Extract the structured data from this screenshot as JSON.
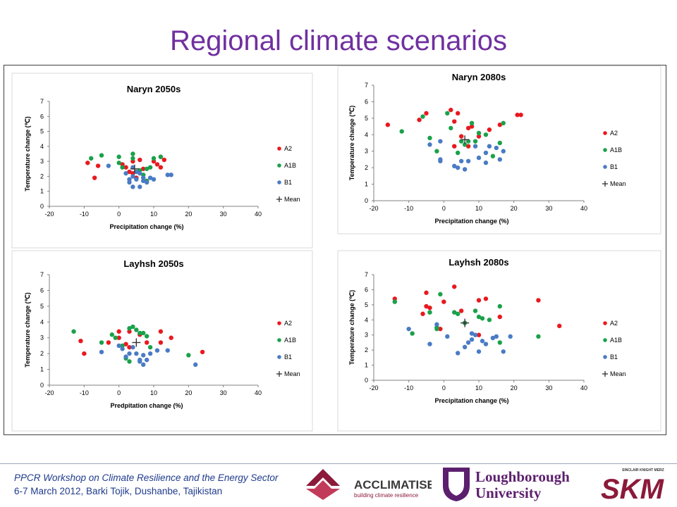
{
  "slide": {
    "title": "Regional climate scenarios",
    "footer_line1": "PPCR Workshop on Climate Resilience and the Energy Sector",
    "footer_line2": "6-7 March 2012, Barki Tojik, Dushanbe, Tajikistan"
  },
  "logos": {
    "acclimatise_name": "ACCLIMATISE",
    "acclimatise_tagline": "building climate resilience",
    "lboro_line1": "Loughborough",
    "lboro_line2": "University",
    "skm_small": "SINCLAIR KNIGHT MERZ",
    "skm_big": "SKM"
  },
  "colors": {
    "A2": "#e8191f",
    "A1B": "#1aa14a",
    "B1": "#4a7bc4",
    "Mean": "#333333",
    "title": "#7030a0"
  },
  "chart_data": [
    {
      "type": "scatter",
      "title": "Naryn 2050s",
      "xlabel": "Precipitation change (%)",
      "ylabel": "Temperature change (℃)",
      "xlim": [
        -20,
        40
      ],
      "ylim": [
        0,
        7
      ],
      "xticks": [
        -20,
        -10,
        0,
        10,
        20,
        30,
        40
      ],
      "yticks": [
        0,
        1,
        2,
        3,
        4,
        5,
        6,
        7
      ],
      "legend": "right",
      "grid": false,
      "series": [
        {
          "name": "A2",
          "points": [
            [
              -9,
              2.9
            ],
            [
              -7,
              1.9
            ],
            [
              -6,
              2.7
            ],
            [
              1,
              2.8
            ],
            [
              3,
              2.3
            ],
            [
              4,
              2.2
            ],
            [
              5,
              1.9
            ],
            [
              6,
              3.1
            ],
            [
              7,
              2.5
            ],
            [
              10,
              3.0
            ],
            [
              11,
              2.8
            ],
            [
              12,
              3.3
            ],
            [
              12,
              2.6
            ],
            [
              13,
              3.1
            ],
            [
              4,
              3.0
            ],
            [
              2,
              2.6
            ]
          ]
        },
        {
          "name": "A1B",
          "points": [
            [
              -8,
              3.2
            ],
            [
              -5,
              3.4
            ],
            [
              0,
              3.3
            ],
            [
              0,
              2.9
            ],
            [
              1,
              2.6
            ],
            [
              4,
              3.5
            ],
            [
              4,
              3.2
            ],
            [
              5,
              2.3
            ],
            [
              6,
              2.4
            ],
            [
              7,
              2.1
            ],
            [
              8,
              2.5
            ],
            [
              9,
              2.6
            ],
            [
              10,
              3.2
            ],
            [
              12,
              3.3
            ],
            [
              8,
              1.7
            ]
          ]
        },
        {
          "name": "B1",
          "points": [
            [
              -3,
              2.7
            ],
            [
              2,
              2.2
            ],
            [
              3,
              1.8
            ],
            [
              3,
              1.6
            ],
            [
              4,
              1.3
            ],
            [
              4,
              2.0
            ],
            [
              5,
              1.8
            ],
            [
              5,
              2.3
            ],
            [
              6,
              2.2
            ],
            [
              6,
              1.3
            ],
            [
              7,
              1.7
            ],
            [
              7,
              1.9
            ],
            [
              8,
              1.6
            ],
            [
              9,
              1.9
            ],
            [
              10,
              1.8
            ],
            [
              14,
              2.1
            ],
            [
              15,
              2.1
            ],
            [
              4,
              2.6
            ]
          ]
        },
        {
          "name": "Mean",
          "points": [
            [
              4.5,
              2.5
            ]
          ]
        }
      ]
    },
    {
      "type": "scatter",
      "title": "Naryn 2080s",
      "xlabel": "Precipitation change (%)",
      "ylabel": "Temperature change (℃)",
      "xlim": [
        -20,
        40
      ],
      "ylim": [
        0,
        7
      ],
      "xticks": [
        -20,
        -10,
        0,
        10,
        20,
        30,
        40
      ],
      "yticks": [
        0,
        1,
        2,
        3,
        4,
        5,
        6,
        7
      ],
      "legend": "right",
      "grid": false,
      "series": [
        {
          "name": "A2",
          "points": [
            [
              -16,
              4.6
            ],
            [
              -7,
              4.9
            ],
            [
              -5,
              5.3
            ],
            [
              2,
              5.5
            ],
            [
              4,
              5.3
            ],
            [
              3,
              4.8
            ],
            [
              3,
              3.3
            ],
            [
              5,
              3.9
            ],
            [
              7,
              4.4
            ],
            [
              8,
              4.5
            ],
            [
              10,
              3.9
            ],
            [
              13,
              4.3
            ],
            [
              16,
              4.6
            ],
            [
              21,
              5.2
            ],
            [
              22,
              5.2
            ],
            [
              7,
              3.3
            ]
          ]
        },
        {
          "name": "A1B",
          "points": [
            [
              -12,
              4.2
            ],
            [
              -6,
              5.1
            ],
            [
              -4,
              3.8
            ],
            [
              -2,
              3.0
            ],
            [
              1,
              5.3
            ],
            [
              2,
              4.4
            ],
            [
              4,
              2.9
            ],
            [
              6,
              3.4
            ],
            [
              7,
              3.6
            ],
            [
              8,
              4.7
            ],
            [
              9,
              3.6
            ],
            [
              10,
              4.1
            ],
            [
              12,
              4.0
            ],
            [
              14,
              2.7
            ],
            [
              16,
              3.5
            ],
            [
              17,
              4.7
            ],
            [
              5,
              3.6
            ]
          ]
        },
        {
          "name": "B1",
          "points": [
            [
              -4,
              3.4
            ],
            [
              -1,
              3.6
            ],
            [
              -1,
              2.5
            ],
            [
              -1,
              2.4
            ],
            [
              4,
              2.0
            ],
            [
              5,
              2.4
            ],
            [
              6,
              1.9
            ],
            [
              7,
              2.4
            ],
            [
              9,
              3.3
            ],
            [
              10,
              2.6
            ],
            [
              12,
              2.9
            ],
            [
              13,
              3.3
            ],
            [
              15,
              3.2
            ],
            [
              16,
              2.5
            ],
            [
              17,
              3.0
            ],
            [
              3,
              2.1
            ],
            [
              12,
              2.3
            ]
          ]
        },
        {
          "name": "Mean",
          "points": [
            [
              6,
              3.7
            ]
          ]
        }
      ]
    },
    {
      "type": "scatter",
      "title": "Layhsh 2050s",
      "xlabel": "Predpitation change (%)",
      "ylabel": "Temperature change (℃)",
      "xlim": [
        -20,
        40
      ],
      "ylim": [
        0,
        7
      ],
      "xticks": [
        -20,
        -10,
        0,
        10,
        20,
        30,
        40
      ],
      "yticks": [
        0,
        1,
        2,
        3,
        4,
        5,
        6,
        7
      ],
      "legend": "right",
      "grid": false,
      "series": [
        {
          "name": "A2",
          "points": [
            [
              -11,
              2.8
            ],
            [
              -10,
              2.0
            ],
            [
              -3,
              2.7
            ],
            [
              0,
              3.0
            ],
            [
              0,
              3.4
            ],
            [
              3,
              3.4
            ],
            [
              3,
              2.4
            ],
            [
              6,
              3.2
            ],
            [
              8,
              2.7
            ],
            [
              12,
              3.4
            ],
            [
              12,
              2.7
            ],
            [
              15,
              3.0
            ],
            [
              24,
              2.1
            ],
            [
              2,
              2.6
            ]
          ]
        },
        {
          "name": "A1B",
          "points": [
            [
              -13,
              3.4
            ],
            [
              -5,
              2.7
            ],
            [
              -2,
              3.2
            ],
            [
              -1,
              3.0
            ],
            [
              1,
              2.5
            ],
            [
              2,
              1.7
            ],
            [
              3,
              3.6
            ],
            [
              4,
              3.7
            ],
            [
              5,
              3.5
            ],
            [
              6,
              3.3
            ],
            [
              7,
              3.3
            ],
            [
              8,
              3.1
            ],
            [
              9,
              2.4
            ],
            [
              20,
              1.9
            ],
            [
              3,
              1.5
            ]
          ]
        },
        {
          "name": "B1",
          "points": [
            [
              -5,
              2.1
            ],
            [
              0,
              2.5
            ],
            [
              1,
              2.3
            ],
            [
              3,
              2.0
            ],
            [
              4,
              2.4
            ],
            [
              5,
              2.0
            ],
            [
              6,
              1.6
            ],
            [
              6,
              1.5
            ],
            [
              7,
              1.3
            ],
            [
              7,
              1.9
            ],
            [
              8,
              1.6
            ],
            [
              9,
              2.0
            ],
            [
              11,
              2.2
            ],
            [
              14,
              2.2
            ],
            [
              22,
              1.3
            ],
            [
              2,
              1.8
            ]
          ]
        },
        {
          "name": "Mean",
          "points": [
            [
              5,
              2.7
            ]
          ]
        }
      ]
    },
    {
      "type": "scatter",
      "title": "Layhsh 2080s",
      "xlabel": "Precipitation change (%)",
      "ylabel": "Temperature change (℃)",
      "xlim": [
        -20,
        40
      ],
      "ylim": [
        0,
        7
      ],
      "xticks": [
        -20,
        -10,
        0,
        10,
        20,
        30,
        40
      ],
      "yticks": [
        0,
        1,
        2,
        3,
        4,
        5,
        6,
        7
      ],
      "legend": "right",
      "grid": false,
      "series": [
        {
          "name": "A2",
          "points": [
            [
              -14,
              5.4
            ],
            [
              -6,
              4.4
            ],
            [
              -5,
              4.9
            ],
            [
              -4,
              4.8
            ],
            [
              -5,
              5.8
            ],
            [
              -1,
              3.4
            ],
            [
              0,
              5.2
            ],
            [
              3,
              6.2
            ],
            [
              5,
              4.6
            ],
            [
              10,
              5.3
            ],
            [
              12,
              5.4
            ],
            [
              16,
              4.2
            ],
            [
              27,
              5.3
            ],
            [
              33,
              3.6
            ],
            [
              10,
              3.0
            ]
          ]
        },
        {
          "name": "A1B",
          "points": [
            [
              -14,
              5.2
            ],
            [
              -9,
              3.1
            ],
            [
              -4,
              4.5
            ],
            [
              -2,
              3.5
            ],
            [
              -1,
              5.7
            ],
            [
              3,
              4.5
            ],
            [
              4,
              4.4
            ],
            [
              6,
              3.8
            ],
            [
              9,
              4.6
            ],
            [
              10,
              4.2
            ],
            [
              11,
              4.1
            ],
            [
              13,
              4.0
            ],
            [
              16,
              4.9
            ],
            [
              16,
              2.5
            ],
            [
              27,
              2.9
            ],
            [
              -2,
              3.4
            ]
          ]
        },
        {
          "name": "B1",
          "points": [
            [
              -10,
              3.4
            ],
            [
              -4,
              2.4
            ],
            [
              -2,
              3.7
            ],
            [
              1,
              2.9
            ],
            [
              4,
              1.8
            ],
            [
              6,
              2.2
            ],
            [
              7,
              2.5
            ],
            [
              8,
              2.7
            ],
            [
              8,
              3.1
            ],
            [
              9,
              3.0
            ],
            [
              10,
              1.9
            ],
            [
              11,
              2.6
            ],
            [
              12,
              2.4
            ],
            [
              14,
              2.8
            ],
            [
              15,
              2.9
            ],
            [
              17,
              1.9
            ],
            [
              19,
              2.9
            ]
          ]
        },
        {
          "name": "Mean",
          "points": [
            [
              6,
              3.8
            ]
          ]
        }
      ]
    }
  ]
}
